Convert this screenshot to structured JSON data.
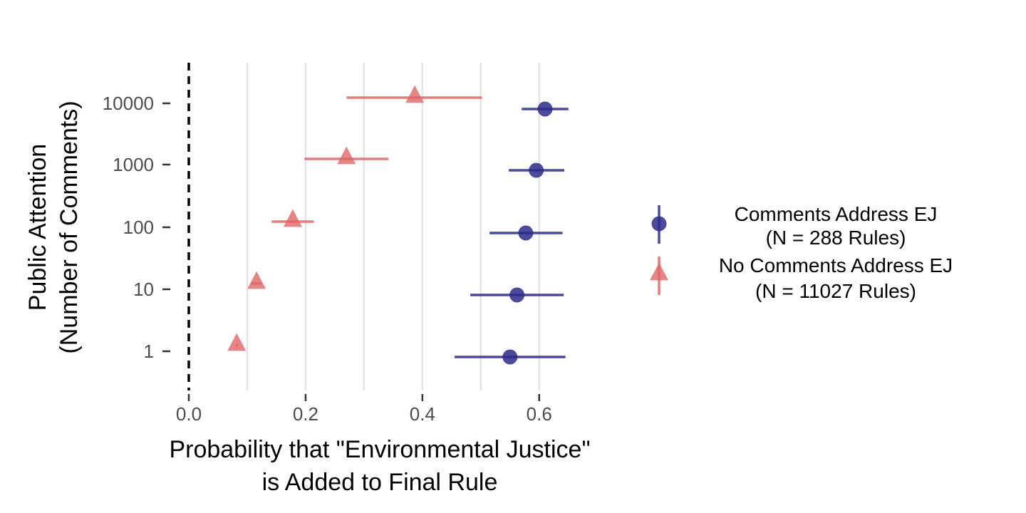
{
  "chart_data": {
    "type": "dotplot-errorbar",
    "orientation": "horizontal",
    "xlabel_lines": [
      "Probability that \"Environmental Justice\"",
      "is Added to Final Rule"
    ],
    "ylabel_lines": [
      "Public Attention",
      "(Number of Comments)"
    ],
    "x_ticks": [
      0.0,
      0.2,
      0.4,
      0.6
    ],
    "x_tick_labels": [
      "0.0",
      "0.2",
      "0.4",
      "0.6"
    ],
    "x_minor_gridlines": [
      0.1,
      0.2,
      0.3,
      0.4,
      0.5,
      0.6
    ],
    "xlim": [
      0.0,
      0.66
    ],
    "reference_line_x": 0.0,
    "y_categories": [
      "1",
      "10",
      "100",
      "1000",
      "10000"
    ],
    "legend_position": "right",
    "series": [
      {
        "name_lines": [
          "Comments Address EJ",
          "(N = 288 Rules)"
        ],
        "marker": "circle",
        "color": "#2b2a8c",
        "points": [
          {
            "y": "1",
            "x": 0.55,
            "lower": 0.455,
            "upper": 0.645
          },
          {
            "y": "10",
            "x": 0.562,
            "lower": 0.482,
            "upper": 0.642
          },
          {
            "y": "100",
            "x": 0.577,
            "lower": 0.515,
            "upper": 0.64
          },
          {
            "y": "1000",
            "x": 0.595,
            "lower": 0.548,
            "upper": 0.643
          },
          {
            "y": "10000",
            "x": 0.61,
            "lower": 0.57,
            "upper": 0.65
          }
        ]
      },
      {
        "name_lines": [
          "No Comments Address EJ",
          "(N = 11027 Rules)"
        ],
        "marker": "triangle",
        "color": "#e06666",
        "points": [
          {
            "y": "1",
            "x": 0.082,
            "lower": 0.08,
            "upper": 0.084
          },
          {
            "y": "10",
            "x": 0.116,
            "lower": 0.108,
            "upper": 0.124
          },
          {
            "y": "100",
            "x": 0.178,
            "lower": 0.142,
            "upper": 0.214
          },
          {
            "y": "1000",
            "x": 0.27,
            "lower": 0.198,
            "upper": 0.342
          },
          {
            "y": "10000",
            "x": 0.387,
            "lower": 0.27,
            "upper": 0.502
          }
        ]
      }
    ]
  }
}
